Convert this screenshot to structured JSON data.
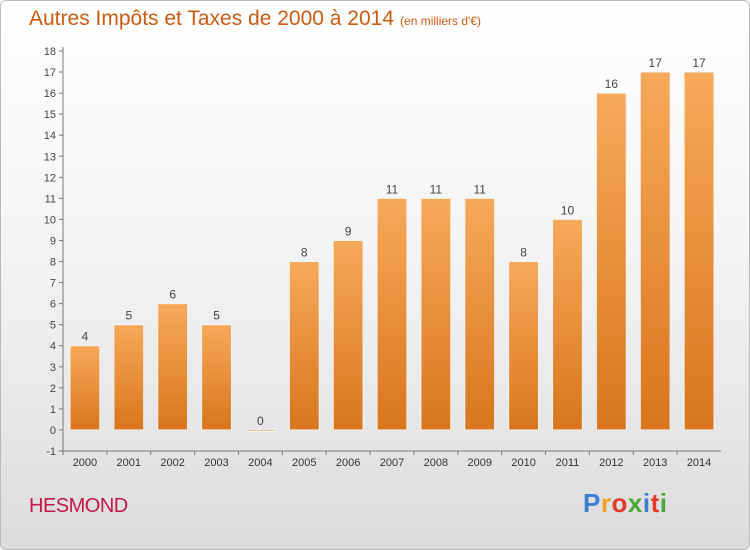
{
  "header": {
    "title": "Autres Impôts et Taxes de 2000 à 2014",
    "subtitle": "(en milliers d'€)"
  },
  "footer": {
    "commune": "HESMOND",
    "logo_text": "Proxiti"
  },
  "colors": {
    "bar_light": "#f7a95a",
    "bar_dark": "#d8761c",
    "title": "#cc5a12",
    "commune": "#c3174a",
    "logo_letters": [
      "#3a7fd0",
      "#f0a021",
      "#e33a2a",
      "#4aa83a",
      "#3a7fd0",
      "#e33a2a",
      "#4aa83a"
    ]
  },
  "chart_data": {
    "type": "bar",
    "categories": [
      "2000",
      "2001",
      "2002",
      "2003",
      "2004",
      "2005",
      "2006",
      "2007",
      "2008",
      "2009",
      "2010",
      "2011",
      "2012",
      "2013",
      "2014"
    ],
    "values": [
      4,
      5,
      6,
      5,
      0,
      8,
      9,
      11,
      11,
      11,
      8,
      10,
      16,
      17,
      17
    ],
    "ylim": [
      -1,
      18
    ],
    "yticks": [
      -1,
      0,
      1,
      2,
      3,
      4,
      5,
      6,
      7,
      8,
      9,
      10,
      11,
      12,
      13,
      14,
      15,
      16,
      17,
      18
    ],
    "grid": false,
    "data_labels": true
  }
}
